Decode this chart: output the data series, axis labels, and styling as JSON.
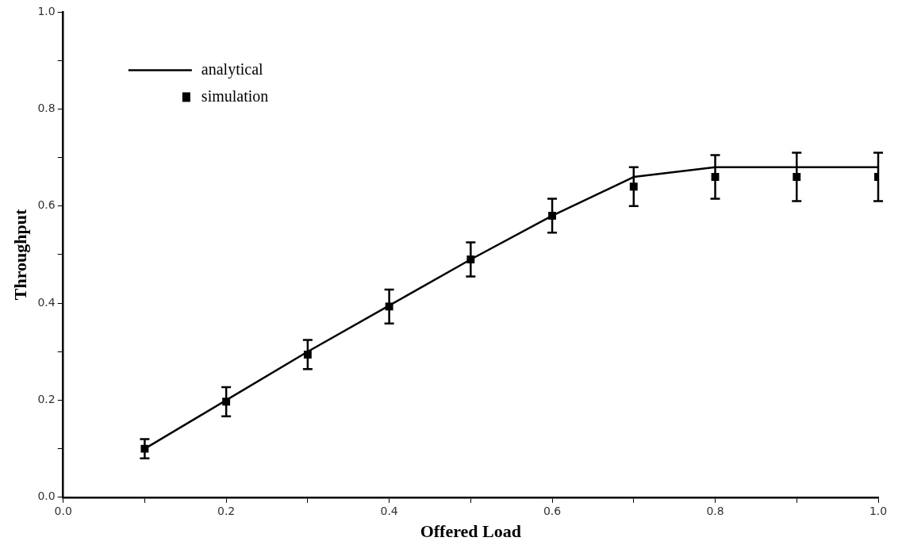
{
  "chart_data": {
    "type": "line",
    "xlabel": "Offered Load",
    "ylabel": "Throughput",
    "xlim": [
      0,
      1.0
    ],
    "ylim": [
      0,
      1.0
    ],
    "xticks": [
      {
        "value": 0,
        "label": "0.0"
      },
      {
        "value": 0.1,
        "label": null
      },
      0.2,
      {
        "value": 0.3,
        "label": null
      },
      0.4,
      {
        "value": 0.5,
        "label": null
      },
      0.6,
      {
        "value": 0.7,
        "label": null
      },
      0.8,
      {
        "value": 0.9,
        "label": null
      },
      {
        "value": 1,
        "label": "1.0"
      }
    ],
    "yticks": [
      {
        "value": 0,
        "label": "0.0"
      },
      {
        "value": 0.1,
        "label": null
      },
      0.2,
      {
        "value": 0.3,
        "label": null
      },
      0.4,
      {
        "value": 0.5,
        "label": null
      },
      0.6,
      {
        "value": 0.7,
        "label": null
      },
      0.8,
      {
        "value": 0.9,
        "label": null
      },
      {
        "value": 1,
        "label": "1.0"
      }
    ],
    "x": [
      0.1,
      0.2,
      0.3,
      0.4,
      0.5,
      0.6,
      0.7,
      0.8,
      0.9,
      1.0
    ],
    "series": [
      {
        "name": "analytical",
        "type": "line",
        "color": "#000000",
        "marker": "none",
        "line_style": "solid",
        "values": [
          0.1,
          0.2,
          0.3,
          0.395,
          0.49,
          0.58,
          0.66,
          0.68,
          0.68,
          0.68
        ]
      },
      {
        "name": "simulation",
        "type": "scatter",
        "color": "#000000",
        "marker": "square",
        "values": [
          0.1,
          0.197,
          0.294,
          0.393,
          0.49,
          0.58,
          0.64,
          0.66,
          0.66,
          0.66
        ],
        "errors": [
          0.02,
          0.03,
          0.03,
          0.035,
          0.035,
          0.035,
          0.04,
          0.045,
          0.05,
          0.05
        ]
      }
    ],
    "grid": false,
    "legend": "top left"
  }
}
